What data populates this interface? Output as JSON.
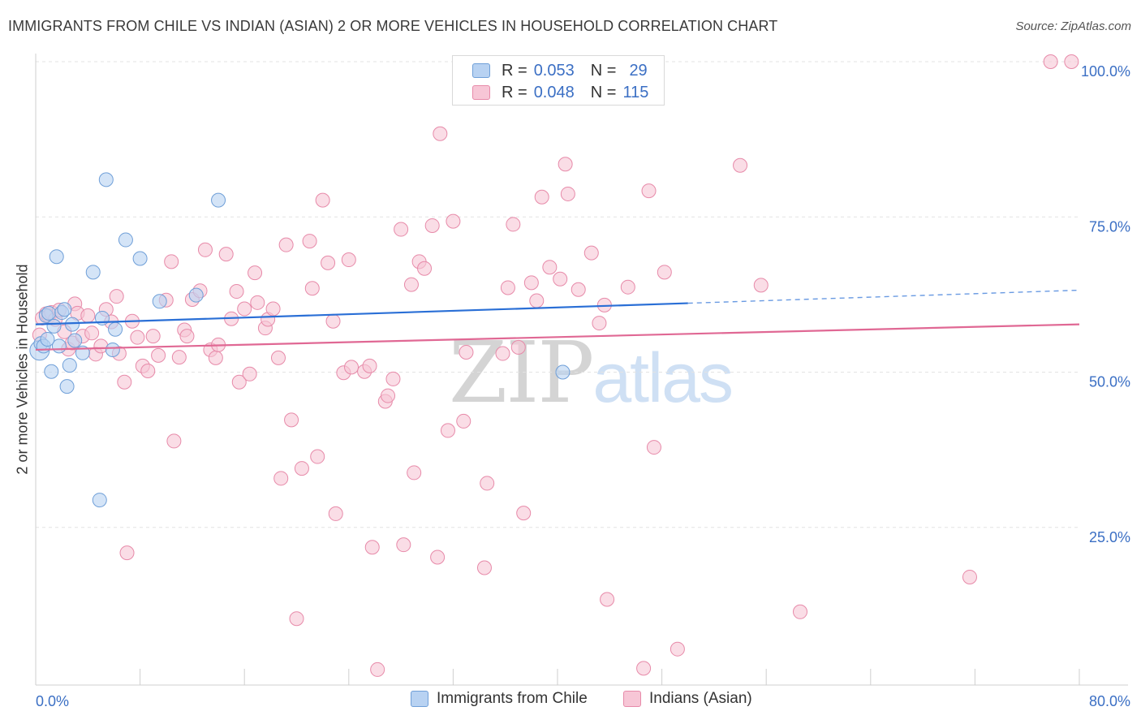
{
  "title": "IMMIGRANTS FROM CHILE VS INDIAN (ASIAN) 2 OR MORE VEHICLES IN HOUSEHOLD CORRELATION CHART",
  "source": "Source: ZipAtlas.com",
  "legend": {
    "rows": [
      {
        "r_label": "R =",
        "r_value": "0.053",
        "n_label": "N =",
        "n_value": "29"
      },
      {
        "r_label": "R =",
        "r_value": "0.048",
        "n_label": "N =",
        "n_value": "115"
      }
    ]
  },
  "watermark": {
    "zip": "ZIP",
    "atlas": "atlas"
  },
  "colors": {
    "blue_fill": "#b8d2f2",
    "blue_stroke": "#6f9fd8",
    "blue_line": "#2a6fd6",
    "pink_fill": "#f7c6d6",
    "pink_stroke": "#e78aa9",
    "pink_line": "#e06894",
    "axis_label": "#3b6fc4",
    "grid": "#e3e3e3"
  },
  "chart_data": {
    "type": "scatter",
    "title": "IMMIGRANTS FROM CHILE VS INDIAN (ASIAN) 2 OR MORE VEHICLES IN HOUSEHOLD CORRELATION CHART",
    "xlabel": "",
    "ylabel": "2 or more Vehicles in Household",
    "xlim": [
      0,
      80
    ],
    "ylim": [
      0,
      100
    ],
    "x_tick_labels": [
      "0.0%",
      "80.0%"
    ],
    "y_tick_labels": [
      "25.0%",
      "50.0%",
      "75.0%",
      "100.0%"
    ],
    "y_ticks": [
      25,
      50,
      75,
      100
    ],
    "grid": true,
    "legend_position": "top-center",
    "series": [
      {
        "name": "Immigrants from Chile",
        "r": 0.053,
        "n": 29,
        "trend": {
          "x0": 0,
          "y0": 57.7,
          "x1": 50,
          "y1": 61.1,
          "dashed_to_x": 80,
          "dashed_to_y": 63.2
        },
        "points": [
          [
            0.3,
            53.5
          ],
          [
            0.4,
            54.6
          ],
          [
            0.6,
            54.2
          ],
          [
            0.8,
            59.1
          ],
          [
            1.0,
            59.5
          ],
          [
            1.2,
            50.1
          ],
          [
            1.4,
            57.4
          ],
          [
            1.6,
            68.6
          ],
          [
            1.8,
            54.2
          ],
          [
            2.0,
            59.6
          ],
          [
            2.4,
            47.7
          ],
          [
            2.6,
            51.1
          ],
          [
            2.8,
            57.7
          ],
          [
            3.0,
            55.1
          ],
          [
            3.6,
            53.1
          ],
          [
            4.4,
            66.1
          ],
          [
            5.1,
            58.7
          ],
          [
            5.4,
            81.0
          ],
          [
            5.9,
            53.6
          ],
          [
            6.1,
            56.9
          ],
          [
            6.9,
            71.3
          ],
          [
            8.0,
            68.3
          ],
          [
            9.5,
            61.4
          ],
          [
            12.3,
            62.4
          ],
          [
            14.0,
            77.7
          ],
          [
            4.9,
            29.4
          ],
          [
            40.4,
            50.0
          ],
          [
            2.2,
            60.1
          ],
          [
            0.9,
            55.3
          ]
        ]
      },
      {
        "name": "Indians (Asian)",
        "r": 0.048,
        "n": 115,
        "trend": {
          "x0": 0,
          "y0": 53.6,
          "x1": 80,
          "y1": 57.7
        },
        "points": [
          [
            0.3,
            56.0
          ],
          [
            0.5,
            58.7
          ],
          [
            0.8,
            59.4
          ],
          [
            1.0,
            59.0
          ],
          [
            1.2,
            59.6
          ],
          [
            1.5,
            58.5
          ],
          [
            1.8,
            60.0
          ],
          [
            2.2,
            56.5
          ],
          [
            2.5,
            53.7
          ],
          [
            2.8,
            54.7
          ],
          [
            3.0,
            61.0
          ],
          [
            3.2,
            59.5
          ],
          [
            3.6,
            55.8
          ],
          [
            4.0,
            59.1
          ],
          [
            4.3,
            56.3
          ],
          [
            4.6,
            52.9
          ],
          [
            5.0,
            54.2
          ],
          [
            5.4,
            60.1
          ],
          [
            5.8,
            58.1
          ],
          [
            6.2,
            62.2
          ],
          [
            6.4,
            53.0
          ],
          [
            6.8,
            48.4
          ],
          [
            7.0,
            20.9
          ],
          [
            7.4,
            58.2
          ],
          [
            7.8,
            55.6
          ],
          [
            8.2,
            51.0
          ],
          [
            8.6,
            50.2
          ],
          [
            9.0,
            55.8
          ],
          [
            9.4,
            52.7
          ],
          [
            10.0,
            61.6
          ],
          [
            10.4,
            67.8
          ],
          [
            10.6,
            38.9
          ],
          [
            11.0,
            52.4
          ],
          [
            11.4,
            56.8
          ],
          [
            11.6,
            55.8
          ],
          [
            12.0,
            61.7
          ],
          [
            12.6,
            63.1
          ],
          [
            13.0,
            69.7
          ],
          [
            13.4,
            53.6
          ],
          [
            13.8,
            52.3
          ],
          [
            14.0,
            54.4
          ],
          [
            14.6,
            69.0
          ],
          [
            15.0,
            58.6
          ],
          [
            15.4,
            63.0
          ],
          [
            15.6,
            48.4
          ],
          [
            16.0,
            60.2
          ],
          [
            16.4,
            49.7
          ],
          [
            16.8,
            66.0
          ],
          [
            17.0,
            61.2
          ],
          [
            17.6,
            57.1
          ],
          [
            17.8,
            58.5
          ],
          [
            18.2,
            60.2
          ],
          [
            18.6,
            52.3
          ],
          [
            18.8,
            32.9
          ],
          [
            19.2,
            70.5
          ],
          [
            19.6,
            42.3
          ],
          [
            20.0,
            10.3
          ],
          [
            20.4,
            34.5
          ],
          [
            21.0,
            71.1
          ],
          [
            21.2,
            63.5
          ],
          [
            21.6,
            36.4
          ],
          [
            22.0,
            77.7
          ],
          [
            22.4,
            67.6
          ],
          [
            22.8,
            58.2
          ],
          [
            23.0,
            27.2
          ],
          [
            23.6,
            49.9
          ],
          [
            24.0,
            68.1
          ],
          [
            24.2,
            50.8
          ],
          [
            25.2,
            50.1
          ],
          [
            25.6,
            51.0
          ],
          [
            25.8,
            21.8
          ],
          [
            26.2,
            2.1
          ],
          [
            26.8,
            45.3
          ],
          [
            27.0,
            46.2
          ],
          [
            27.4,
            48.9
          ],
          [
            28.0,
            73.0
          ],
          [
            28.2,
            22.2
          ],
          [
            28.8,
            64.1
          ],
          [
            29.0,
            33.8
          ],
          [
            29.4,
            67.8
          ],
          [
            29.8,
            66.7
          ],
          [
            30.4,
            73.6
          ],
          [
            30.8,
            20.2
          ],
          [
            31.0,
            88.4
          ],
          [
            31.6,
            40.6
          ],
          [
            32.0,
            74.3
          ],
          [
            32.8,
            42.1
          ],
          [
            33.0,
            53.2
          ],
          [
            34.4,
            18.5
          ],
          [
            34.6,
            32.1
          ],
          [
            35.8,
            53.0
          ],
          [
            36.2,
            63.6
          ],
          [
            36.6,
            73.8
          ],
          [
            37.4,
            27.3
          ],
          [
            37.0,
            54.0
          ],
          [
            38.0,
            64.4
          ],
          [
            38.4,
            61.5
          ],
          [
            38.8,
            78.2
          ],
          [
            39.4,
            66.9
          ],
          [
            40.2,
            65.0
          ],
          [
            40.6,
            83.5
          ],
          [
            40.8,
            78.7
          ],
          [
            41.6,
            63.3
          ],
          [
            42.6,
            69.2
          ],
          [
            43.2,
            57.9
          ],
          [
            43.6,
            60.8
          ],
          [
            43.8,
            13.4
          ],
          [
            45.4,
            63.7
          ],
          [
            46.6,
            2.3
          ],
          [
            47.0,
            79.2
          ],
          [
            47.4,
            37.9
          ],
          [
            48.2,
            66.1
          ],
          [
            49.2,
            5.4
          ],
          [
            54.0,
            83.3
          ],
          [
            55.6,
            64.0
          ],
          [
            58.6,
            11.4
          ],
          [
            71.6,
            17.0
          ],
          [
            77.8,
            100.0
          ],
          [
            79.4,
            100.0
          ]
        ]
      }
    ]
  },
  "bottom_legend": {
    "items": [
      {
        "label": "Immigrants from Chile"
      },
      {
        "label": "Indians (Asian)"
      }
    ]
  }
}
